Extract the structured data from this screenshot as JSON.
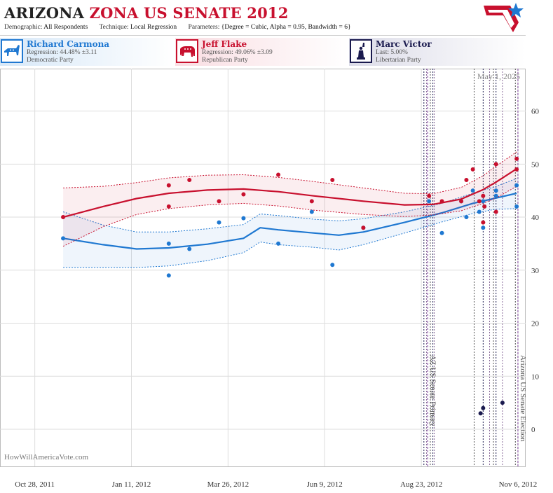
{
  "header": {
    "title_main": "ARIZONA",
    "title_rest": "ZONA US SENATE 2012",
    "demographic_label": "Demographic:",
    "demographic_value": "All Respondents",
    "technique_label": "Technique:",
    "technique_value": "Local Regression",
    "parameters_label": "Parameters:",
    "parameters_value": "{Degree = Cubic, Alpha = 0.95, Bandwidth = 6}"
  },
  "candidates": [
    {
      "name": "Richard Carmona",
      "stat": "Regression: 44.48% ±3.11",
      "party": "Democratic Party",
      "color": "#1f78d1",
      "icon": "donkey-icon"
    },
    {
      "name": "Jeff Flake",
      "stat": "Regression: 49.06% ±3.09",
      "party": "Republican Party",
      "color": "#c8102e",
      "icon": "elephant-icon"
    },
    {
      "name": "Marc Victor",
      "stat": "Last: 5.00%",
      "party": "Libertarian Party",
      "color": "#1a1a4e",
      "icon": "statue-of-liberty-icon"
    }
  ],
  "colors": {
    "dem": "#1f78d1",
    "rep": "#c8102e",
    "lib": "#1a1a4e",
    "grid": "#dddddd"
  },
  "chart_data": {
    "type": "scatter",
    "date_label": "May 1, 2025",
    "watermark": "HowWillAmericaVote.com",
    "x_ticks": [
      "Oct 28, 2011",
      "Jan 11, 2012",
      "Mar 26, 2012",
      "Jun 9, 2012",
      "Aug 23, 2012",
      "Nov 6, 2012"
    ],
    "x_range": [
      "2011-10-01",
      "2012-11-12"
    ],
    "y_ticks": [
      0,
      10,
      20,
      30,
      40,
      50,
      60
    ],
    "ylim": [
      -7,
      68
    ],
    "grid": true,
    "events": [
      {
        "label": "AZ US Senate Primary",
        "date": "2012-08-28"
      },
      {
        "label": "Arizona US Senate Election",
        "date": "2012-11-06"
      }
    ],
    "poll_dates": [
      "2012-08-25",
      "2012-08-27",
      "2012-08-30",
      "2012-09-01",
      "2012-09-02",
      "2012-10-03",
      "2012-10-10",
      "2012-10-15",
      "2012-10-18",
      "2012-10-20",
      "2012-10-25",
      "2012-11-04"
    ],
    "series": [
      {
        "name": "Richard Carmona",
        "points": [
          [
            "2011-11-19",
            36
          ],
          [
            "2012-02-09",
            35
          ],
          [
            "2012-02-09",
            29
          ],
          [
            "2012-02-25",
            34
          ],
          [
            "2012-03-19",
            39
          ],
          [
            "2012-04-07",
            39.8
          ],
          [
            "2012-05-04",
            35
          ],
          [
            "2012-05-30",
            41
          ],
          [
            "2012-06-15",
            31
          ],
          [
            "2012-07-09",
            38
          ],
          [
            "2012-08-29",
            43
          ],
          [
            "2012-09-08",
            37
          ],
          [
            "2012-09-23",
            43
          ],
          [
            "2012-09-27",
            40
          ],
          [
            "2012-10-02",
            45
          ],
          [
            "2012-10-07",
            41
          ],
          [
            "2012-10-10",
            38
          ],
          [
            "2012-10-10",
            43
          ],
          [
            "2012-10-11",
            42
          ],
          [
            "2012-10-20",
            44
          ],
          [
            "2012-10-20",
            45
          ],
          [
            "2012-11-05",
            46
          ],
          [
            "2012-11-05",
            42
          ]
        ],
        "trend": [
          [
            "2011-11-19",
            36
          ],
          [
            "2011-12-20",
            34.8
          ],
          [
            "2012-01-15",
            34
          ],
          [
            "2012-02-09",
            34.2
          ],
          [
            "2012-03-10",
            34.9
          ],
          [
            "2012-04-07",
            36
          ],
          [
            "2012-04-20",
            38
          ],
          [
            "2012-05-04",
            37.6
          ],
          [
            "2012-06-01",
            37
          ],
          [
            "2012-06-20",
            36.6
          ],
          [
            "2012-07-09",
            37.2
          ],
          [
            "2012-08-10",
            39
          ],
          [
            "2012-09-08",
            40.8
          ],
          [
            "2012-10-02",
            42.6
          ],
          [
            "2012-10-20",
            43.6
          ],
          [
            "2012-11-05",
            44.5
          ]
        ],
        "upper": [
          [
            "2011-11-19",
            41
          ],
          [
            "2011-12-20",
            38.5
          ],
          [
            "2012-01-15",
            37.2
          ],
          [
            "2012-02-09",
            37.2
          ],
          [
            "2012-03-10",
            37.8
          ],
          [
            "2012-04-07",
            38.6
          ],
          [
            "2012-04-20",
            40.6
          ],
          [
            "2012-05-04",
            40.3
          ],
          [
            "2012-06-01",
            39.6
          ],
          [
            "2012-06-20",
            39.3
          ],
          [
            "2012-07-09",
            39.7
          ],
          [
            "2012-08-10",
            41
          ],
          [
            "2012-09-08",
            42.6
          ],
          [
            "2012-10-02",
            44.5
          ],
          [
            "2012-10-20",
            45.8
          ],
          [
            "2012-11-05",
            47.3
          ]
        ],
        "lower": [
          [
            "2011-11-19",
            30.5
          ],
          [
            "2011-12-20",
            30.5
          ],
          [
            "2012-01-15",
            30.5
          ],
          [
            "2012-02-09",
            30.8
          ],
          [
            "2012-03-10",
            31.8
          ],
          [
            "2012-04-07",
            33.3
          ],
          [
            "2012-04-20",
            35.3
          ],
          [
            "2012-05-04",
            34.8
          ],
          [
            "2012-06-01",
            34.3
          ],
          [
            "2012-06-20",
            33.8
          ],
          [
            "2012-07-09",
            34.8
          ],
          [
            "2012-08-10",
            37
          ],
          [
            "2012-09-08",
            39.1
          ],
          [
            "2012-10-02",
            40.7
          ],
          [
            "2012-10-20",
            41.5
          ],
          [
            "2012-11-05",
            41.6
          ]
        ]
      },
      {
        "name": "Jeff Flake",
        "points": [
          [
            "2011-11-19",
            40
          ],
          [
            "2012-02-09",
            46
          ],
          [
            "2012-02-09",
            42
          ],
          [
            "2012-02-25",
            47
          ],
          [
            "2012-03-19",
            43
          ],
          [
            "2012-04-07",
            44.3
          ],
          [
            "2012-05-04",
            48
          ],
          [
            "2012-05-30",
            43
          ],
          [
            "2012-06-15",
            47
          ],
          [
            "2012-07-09",
            38
          ],
          [
            "2012-08-29",
            44
          ],
          [
            "2012-09-08",
            43
          ],
          [
            "2012-09-23",
            43
          ],
          [
            "2012-09-27",
            47
          ],
          [
            "2012-10-02",
            49
          ],
          [
            "2012-10-07",
            43
          ],
          [
            "2012-10-10",
            39
          ],
          [
            "2012-10-10",
            44
          ],
          [
            "2012-10-11",
            42
          ],
          [
            "2012-10-20",
            41
          ],
          [
            "2012-10-20",
            50
          ],
          [
            "2012-11-05",
            51
          ],
          [
            "2012-11-05",
            49
          ]
        ],
        "trend": [
          [
            "2011-11-19",
            40
          ],
          [
            "2011-12-20",
            42
          ],
          [
            "2012-01-15",
            43.5
          ],
          [
            "2012-02-09",
            44.5
          ],
          [
            "2012-03-10",
            45.1
          ],
          [
            "2012-04-07",
            45.3
          ],
          [
            "2012-05-04",
            44.8
          ],
          [
            "2012-06-01",
            44
          ],
          [
            "2012-07-09",
            43
          ],
          [
            "2012-08-10",
            42.3
          ],
          [
            "2012-09-01",
            42.4
          ],
          [
            "2012-09-23",
            43.4
          ],
          [
            "2012-10-10",
            45.2
          ],
          [
            "2012-10-20",
            46.6
          ],
          [
            "2012-11-05",
            49.1
          ]
        ],
        "upper": [
          [
            "2011-11-19",
            45.5
          ],
          [
            "2011-12-20",
            45.8
          ],
          [
            "2012-01-15",
            46.5
          ],
          [
            "2012-02-09",
            47.4
          ],
          [
            "2012-03-10",
            47.9
          ],
          [
            "2012-04-07",
            48
          ],
          [
            "2012-05-04",
            47.5
          ],
          [
            "2012-06-01",
            46.7
          ],
          [
            "2012-07-09",
            45.5
          ],
          [
            "2012-08-10",
            44.5
          ],
          [
            "2012-09-01",
            44.4
          ],
          [
            "2012-09-23",
            45.6
          ],
          [
            "2012-10-10",
            47.8
          ],
          [
            "2012-10-20",
            49.6
          ],
          [
            "2012-11-05",
            52.3
          ]
        ],
        "lower": [
          [
            "2011-11-19",
            34.5
          ],
          [
            "2011-12-20",
            38.2
          ],
          [
            "2012-01-15",
            40.5
          ],
          [
            "2012-02-09",
            41.6
          ],
          [
            "2012-03-10",
            42.3
          ],
          [
            "2012-04-07",
            42.6
          ],
          [
            "2012-05-04",
            42.1
          ],
          [
            "2012-06-01",
            41.3
          ],
          [
            "2012-07-09",
            40.5
          ],
          [
            "2012-08-10",
            40.1
          ],
          [
            "2012-09-01",
            40.4
          ],
          [
            "2012-09-23",
            41.2
          ],
          [
            "2012-10-10",
            42.6
          ],
          [
            "2012-10-20",
            43.6
          ],
          [
            "2012-11-05",
            45.8
          ]
        ]
      },
      {
        "name": "Marc Victor",
        "points": [
          [
            "2012-10-08",
            3
          ],
          [
            "2012-10-10",
            4
          ],
          [
            "2012-10-25",
            5
          ]
        ]
      }
    ]
  }
}
